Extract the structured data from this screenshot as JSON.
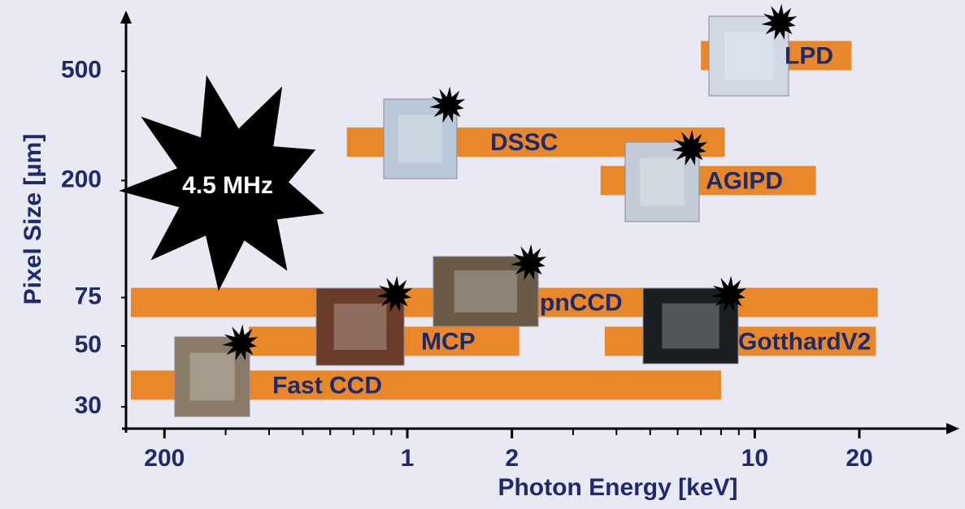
{
  "chart_data": {
    "type": "range-bar",
    "x_label": "Photon Energy [keV]",
    "y_label": "Pixel Size [µm]",
    "annotation": "4.5 MHz",
    "x_log": true,
    "y_log": true,
    "xlim": [
      0.155,
      38.8
    ],
    "ylim": [
      25,
      820
    ],
    "xticks": [
      {
        "value": 0.2,
        "label": "200"
      },
      1,
      2,
      10,
      20
    ],
    "yticks": [
      30,
      50,
      75,
      200,
      500
    ],
    "color": "#e8882a",
    "bars": [
      {
        "name": "LPD",
        "x": [
          7,
          19
        ],
        "y": 570
      },
      {
        "name": "DSSC",
        "x": [
          0.67,
          8.2
        ],
        "y": 276
      },
      {
        "name": "AGIPD",
        "x": [
          3.6,
          15
        ],
        "y": 200
      },
      {
        "name": "pnCCD",
        "x": [
          0.16,
          22.6
        ],
        "y": 72
      },
      {
        "name": "MCP",
        "x": [
          0.35,
          2.1
        ],
        "y": 52
      },
      {
        "name": "GotthardV2",
        "x": [
          3.7,
          22.3
        ],
        "y": 52
      },
      {
        "name": "Fast CCD",
        "x": [
          0.16,
          8
        ],
        "y": 36
      }
    ]
  }
}
